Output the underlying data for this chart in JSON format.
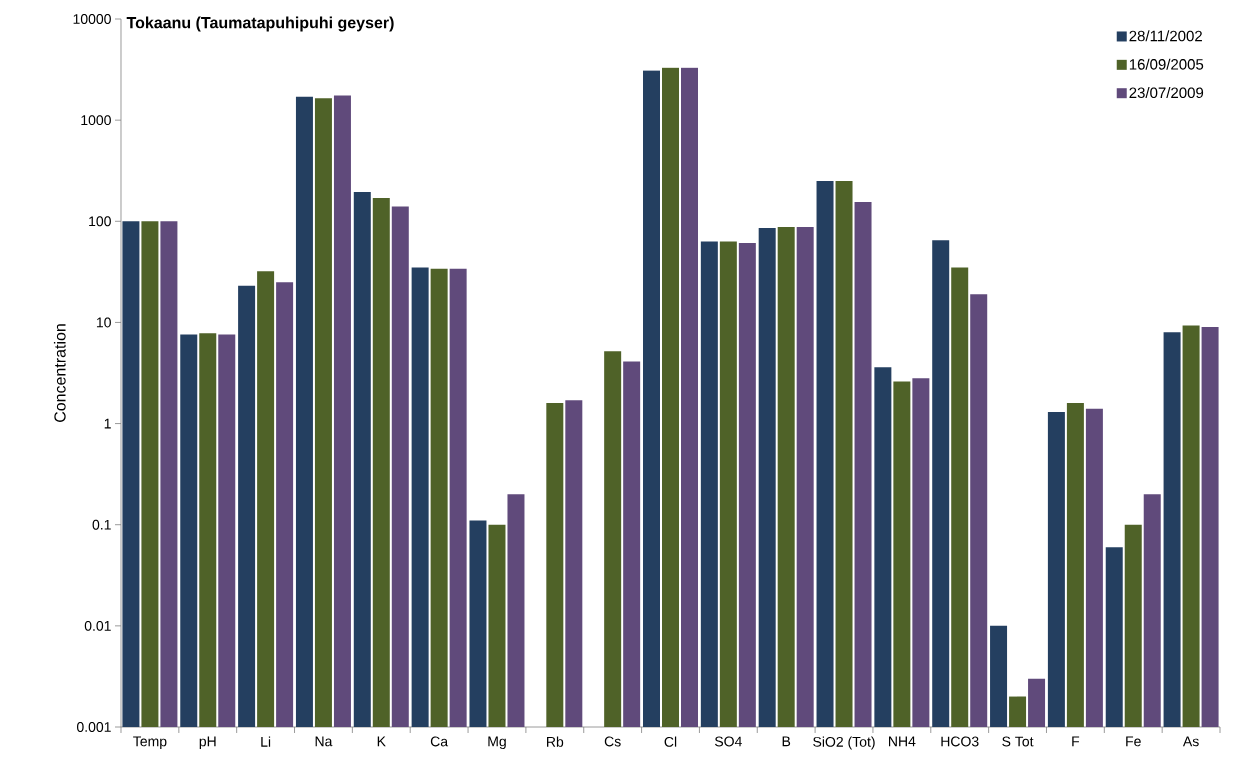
{
  "chart_data": {
    "type": "bar",
    "title": "Tokaanu (Taumatapuhipuhi geyser)",
    "ylabel": "Concentration",
    "categories": [
      "Temp",
      "pH",
      "Li",
      "Na",
      "K",
      "Ca",
      "Mg",
      "Rb",
      "Cs",
      "Cl",
      "SO4",
      "B",
      "SiO2 (Tot)",
      "NH4",
      "HCO3",
      "S Tot",
      "F",
      "Fe",
      "As"
    ],
    "series": [
      {
        "name": "28/11/2002",
        "color": "#243f60",
        "values": [
          100,
          7.6,
          23,
          1700,
          195,
          35,
          0.11,
          null,
          null,
          3100,
          63,
          86,
          250,
          3.6,
          65,
          0.01,
          1.3,
          0.06,
          8
        ]
      },
      {
        "name": "16/09/2005",
        "color": "#4f6228",
        "values": [
          100,
          7.8,
          32,
          1650,
          170,
          34,
          0.1,
          1.6,
          5.2,
          3300,
          63,
          88,
          250,
          2.6,
          35,
          0.002,
          1.6,
          0.1,
          9.3
        ]
      },
      {
        "name": "23/07/2009",
        "color": "#604a7b",
        "values": [
          100,
          7.6,
          25,
          1750,
          140,
          34,
          0.2,
          1.7,
          4.1,
          3300,
          61,
          88,
          155,
          2.8,
          19,
          0.003,
          1.4,
          0.2,
          9
        ]
      }
    ],
    "log": "y",
    "ylim": [
      0.001,
      10000
    ],
    "yticks": [
      0.001,
      0.01,
      0.1,
      1,
      10,
      100,
      1000,
      10000
    ],
    "grid": false,
    "legend": "top right"
  }
}
